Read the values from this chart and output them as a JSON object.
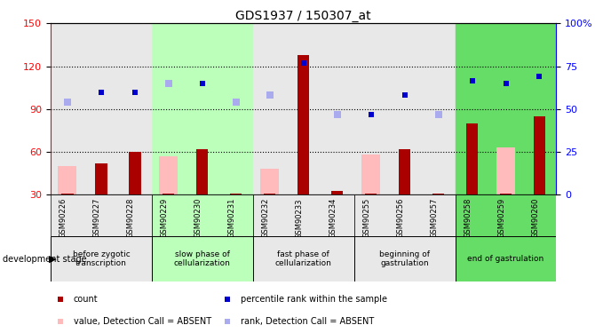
{
  "title": "GDS1937 / 150307_at",
  "samples": [
    "GSM90226",
    "GSM90227",
    "GSM90228",
    "GSM90229",
    "GSM90230",
    "GSM90231",
    "GSM90232",
    "GSM90233",
    "GSM90234",
    "GSM90255",
    "GSM90256",
    "GSM90257",
    "GSM90258",
    "GSM90259",
    "GSM90260"
  ],
  "count_values": [
    31,
    52,
    60,
    31,
    62,
    31,
    31,
    128,
    33,
    31,
    62,
    31,
    80,
    31,
    85
  ],
  "pink_values": [
    50,
    0,
    0,
    57,
    0,
    0,
    48,
    0,
    0,
    58,
    0,
    0,
    0,
    63,
    0
  ],
  "blue_dark_values": [
    0,
    102,
    102,
    0,
    108,
    0,
    0,
    122,
    0,
    86,
    100,
    0,
    110,
    108,
    113
  ],
  "blue_light_values": [
    95,
    0,
    0,
    108,
    0,
    95,
    100,
    0,
    86,
    0,
    0,
    86,
    0,
    0,
    0
  ],
  "stage_groups": [
    {
      "label": "before zygotic\ntranscription",
      "start": 0,
      "end": 3,
      "bg": "#e8e8e8"
    },
    {
      "label": "slow phase of\ncellularization",
      "start": 3,
      "end": 6,
      "bg": "#bbffbb"
    },
    {
      "label": "fast phase of\ncellularization",
      "start": 6,
      "end": 9,
      "bg": "#e8e8e8"
    },
    {
      "label": "beginning of\ngastrulation",
      "start": 9,
      "end": 12,
      "bg": "#e8e8e8"
    },
    {
      "label": "end of gastrulation",
      "start": 12,
      "end": 15,
      "bg": "#66dd66"
    }
  ],
  "ylim_left": [
    30,
    150
  ],
  "ylim_right": [
    0,
    100
  ],
  "yticks_left": [
    30,
    60,
    90,
    120,
    150
  ],
  "yticks_right": [
    0,
    25,
    50,
    75,
    100
  ],
  "count_color": "#aa0000",
  "pink_color": "#ffbbbb",
  "blue_dark_color": "#0000cc",
  "blue_light_color": "#aaaaee",
  "grid_lines": [
    60,
    90,
    120
  ],
  "legend_items": [
    {
      "label": "count",
      "color": "#aa0000"
    },
    {
      "label": "percentile rank within the sample",
      "color": "#0000cc"
    },
    {
      "label": "value, Detection Call = ABSENT",
      "color": "#ffbbbb"
    },
    {
      "label": "rank, Detection Call = ABSENT",
      "color": "#aaaaee"
    }
  ]
}
